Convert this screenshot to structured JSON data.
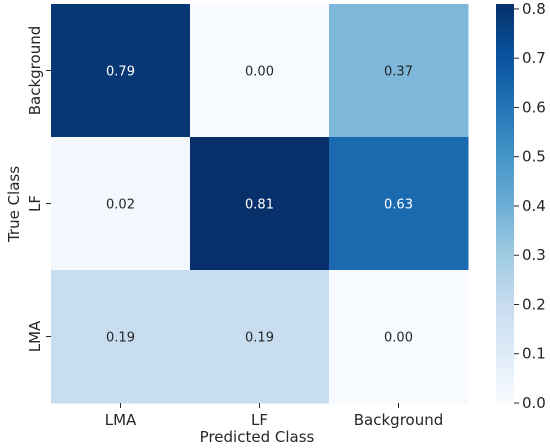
{
  "chart_data": {
    "type": "heatmap",
    "title": "",
    "xlabel": "Predicted Class",
    "ylabel": "True Class",
    "x_categories": [
      "LMA",
      "LF",
      "Background"
    ],
    "y_categories": [
      "Background",
      "LF",
      "LMA"
    ],
    "values": [
      [
        0.79,
        0.0,
        0.37
      ],
      [
        0.02,
        0.81,
        0.63
      ],
      [
        0.19,
        0.19,
        0.0
      ]
    ],
    "value_labels": [
      [
        "0.79",
        "0.00",
        "0.37"
      ],
      [
        "0.02",
        "0.81",
        "0.63"
      ],
      [
        "0.19",
        "0.19",
        "0.00"
      ]
    ],
    "colormap": "Blues",
    "vmin": 0.0,
    "vmax": 0.81,
    "colorbar_ticks": [
      "0.0",
      "0.1",
      "0.2",
      "0.3",
      "0.4",
      "0.5",
      "0.6",
      "0.7",
      "0.8"
    ],
    "colorbar_tick_values": [
      0.0,
      0.1,
      0.2,
      0.3,
      0.4,
      0.5,
      0.6,
      0.7,
      0.8
    ]
  }
}
